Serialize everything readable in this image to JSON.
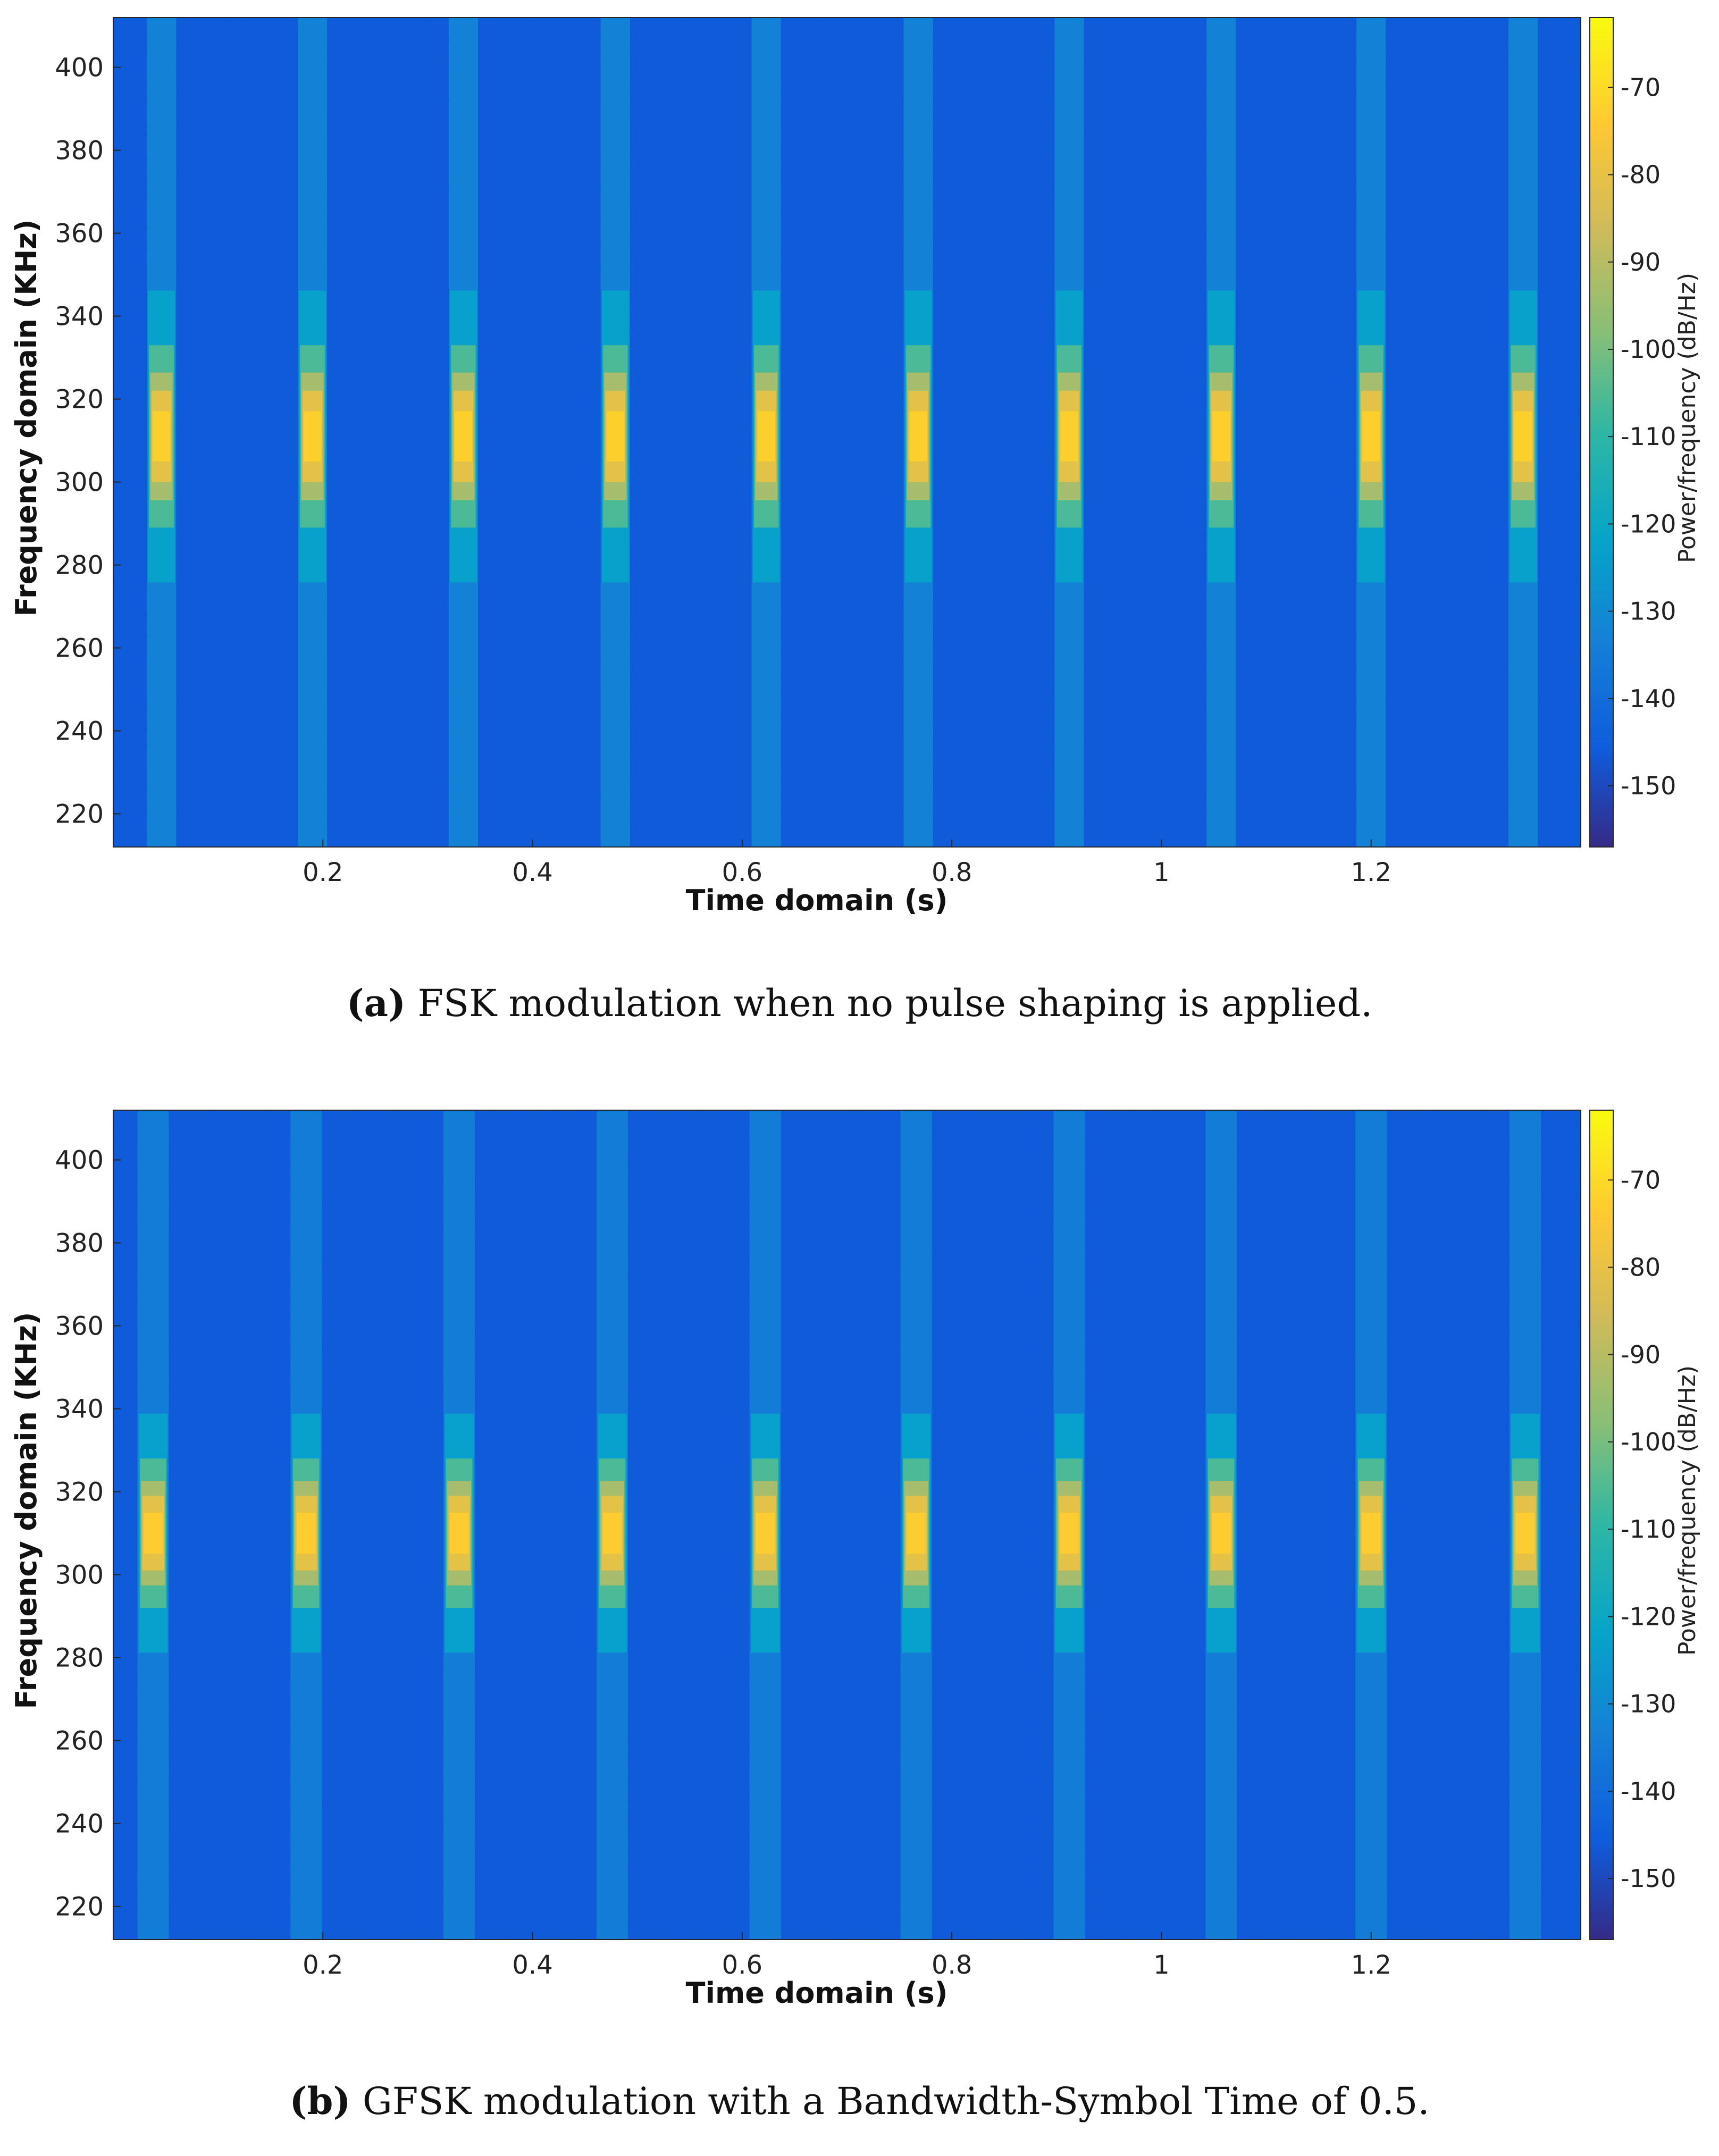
{
  "chart_data": [
    {
      "type": "heatmap",
      "caption": {
        "label": "(a)",
        "text": "FSK modulation when no pulse shaping is applied."
      },
      "xlabel": "Time domain (s)",
      "ylabel": "Frequency domain (KHz)",
      "colorbar_label": "Power/frequency (dB/Hz)",
      "xlim": [
        0.0,
        1.4
      ],
      "ylim": [
        212,
        412
      ],
      "x_ticks": [
        0.2,
        0.4,
        0.6,
        0.8,
        1.0,
        1.2
      ],
      "x_tick_labels": [
        "0.2",
        "0.4",
        "0.6",
        "0.8",
        "1",
        "1.2"
      ],
      "y_ticks": [
        220,
        240,
        260,
        280,
        300,
        320,
        340,
        360,
        380,
        400
      ],
      "y_tick_labels": [
        "220",
        "240",
        "260",
        "280",
        "300",
        "320",
        "340",
        "360",
        "380",
        "400"
      ],
      "clim": [
        -157,
        -62
      ],
      "c_ticks": [
        -70,
        -80,
        -90,
        -100,
        -110,
        -120,
        -130,
        -140,
        -150
      ],
      "c_tick_labels": [
        "-70",
        "-80",
        "-90",
        "-100",
        "-110",
        "-120",
        "-130",
        "-140",
        "-150"
      ],
      "background_level_db": -145,
      "burst_times_s": [
        0.046,
        0.19,
        0.334,
        0.479,
        0.623,
        0.768,
        0.912,
        1.057,
        1.2,
        1.345
      ],
      "burst_width_s": 0.028,
      "burst_center_khz": 311,
      "burst_peak_db": -72,
      "burst_core_halfwidth_khz": 11,
      "burst_floor_db": -132
    },
    {
      "type": "heatmap",
      "caption": {
        "label": "(b)",
        "text": "GFSK modulation with a Bandwidth-Symbol Time of 0.5."
      },
      "xlabel": "Time domain (s)",
      "ylabel": "Frequency domain (KHz)",
      "colorbar_label": "Power/frequency (dB/Hz)",
      "xlim": [
        0.0,
        1.4
      ],
      "ylim": [
        212,
        412
      ],
      "x_ticks": [
        0.2,
        0.4,
        0.6,
        0.8,
        1.0,
        1.2
      ],
      "x_tick_labels": [
        "0.2",
        "0.4",
        "0.6",
        "0.8",
        "1",
        "1.2"
      ],
      "y_ticks": [
        220,
        240,
        260,
        280,
        300,
        320,
        340,
        360,
        380,
        400
      ],
      "y_tick_labels": [
        "220",
        "240",
        "260",
        "280",
        "300",
        "320",
        "340",
        "360",
        "380",
        "400"
      ],
      "clim": [
        -157,
        -62
      ],
      "c_ticks": [
        -70,
        -80,
        -90,
        -100,
        -110,
        -120,
        -130,
        -140,
        -150
      ],
      "c_tick_labels": [
        "-70",
        "-80",
        "-90",
        "-100",
        "-110",
        "-120",
        "-130",
        "-140",
        "-150"
      ],
      "background_level_db": -145,
      "burst_times_s": [
        0.038,
        0.184,
        0.33,
        0.476,
        0.622,
        0.766,
        0.912,
        1.057,
        1.2,
        1.347
      ],
      "burst_width_s": 0.03,
      "burst_center_khz": 310,
      "burst_peak_db": -73,
      "burst_core_halfwidth_khz": 9,
      "burst_floor_db": -134
    }
  ]
}
